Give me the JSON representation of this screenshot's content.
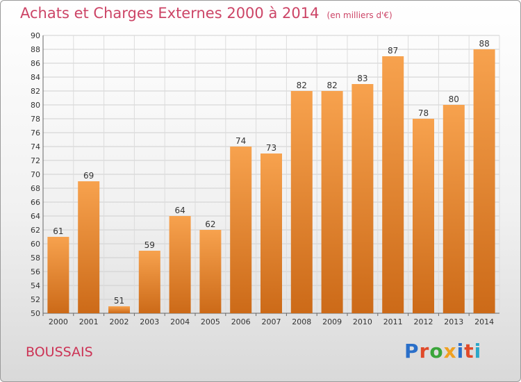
{
  "header": {
    "title": "Achats et Charges Externes 2000 à 2014",
    "unit": "(en milliers d'€)"
  },
  "footer": {
    "commune": "BOUSSAIS",
    "logo": "Proxiti"
  },
  "colors": {
    "title": "#cc4466",
    "bar_light": "#f7a24e",
    "bar_dark": "#cc6a18",
    "logo": [
      "#2a6fc9",
      "#e04a2a",
      "#3aa53a",
      "#f0a020",
      "#2a6fc9",
      "#e04a2a",
      "#2aa7c9"
    ]
  },
  "chart_data": {
    "type": "bar",
    "categories": [
      "2000",
      "2001",
      "2002",
      "2003",
      "2004",
      "2005",
      "2006",
      "2007",
      "2008",
      "2009",
      "2010",
      "2011",
      "2012",
      "2013",
      "2014"
    ],
    "values": [
      61,
      69,
      51,
      59,
      64,
      62,
      74,
      73,
      82,
      82,
      83,
      87,
      78,
      80,
      88
    ],
    "ylim": [
      50,
      90
    ],
    "yticks": [
      50,
      52,
      54,
      56,
      58,
      60,
      62,
      64,
      66,
      68,
      70,
      72,
      74,
      76,
      78,
      80,
      82,
      84,
      86,
      88,
      90
    ],
    "grid": true,
    "legend": "none",
    "data_labels": true
  }
}
